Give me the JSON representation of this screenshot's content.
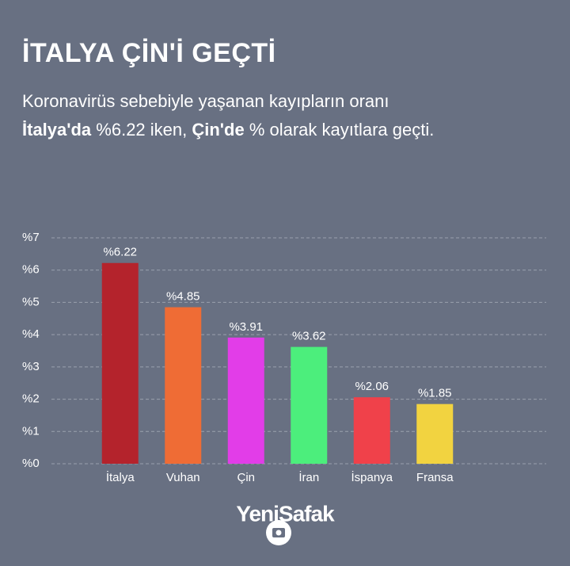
{
  "chart_data": {
    "type": "bar",
    "title": "İTALYA ÇİN'İ GEÇTİ",
    "subtitle": [
      [
        {
          "text": "Koronavirüs sebebiyle yaşanan kayıpların oranı",
          "bold": false
        }
      ],
      [
        {
          "text": "İtalya'da",
          "bold": true
        },
        {
          "text": " %6.22 iken, ",
          "bold": false
        },
        {
          "text": "Çin'de",
          "bold": true
        },
        {
          "text": " % olarak kayıtlara geçti.",
          "bold": false
        }
      ]
    ],
    "categories": [
      "İtalya",
      "Vuhan",
      "Çin",
      "İran",
      "İspanya",
      "Fransa"
    ],
    "values": [
      6.22,
      4.85,
      3.91,
      3.62,
      2.06,
      1.85
    ],
    "value_labels": [
      "%6.22",
      "%4.85",
      "%3.91",
      "%3.62",
      "%2.06",
      "%1.85"
    ],
    "colors": [
      "#b4232c",
      "#ef6c35",
      "#e23de8",
      "#4cee7c",
      "#f0414a",
      "#f2d340"
    ],
    "ylim": [
      0,
      7
    ],
    "yticks": [
      {
        "value": 0,
        "label": "%0"
      },
      {
        "value": 1,
        "label": "%1"
      },
      {
        "value": 2,
        "label": "%2"
      },
      {
        "value": 3,
        "label": "%3"
      },
      {
        "value": 4,
        "label": "%4"
      },
      {
        "value": 5,
        "label": "%5"
      },
      {
        "value": 6,
        "label": "%6"
      },
      {
        "value": 7,
        "label": "%7"
      }
    ],
    "grid": true,
    "logo": "YeniSafak"
  }
}
